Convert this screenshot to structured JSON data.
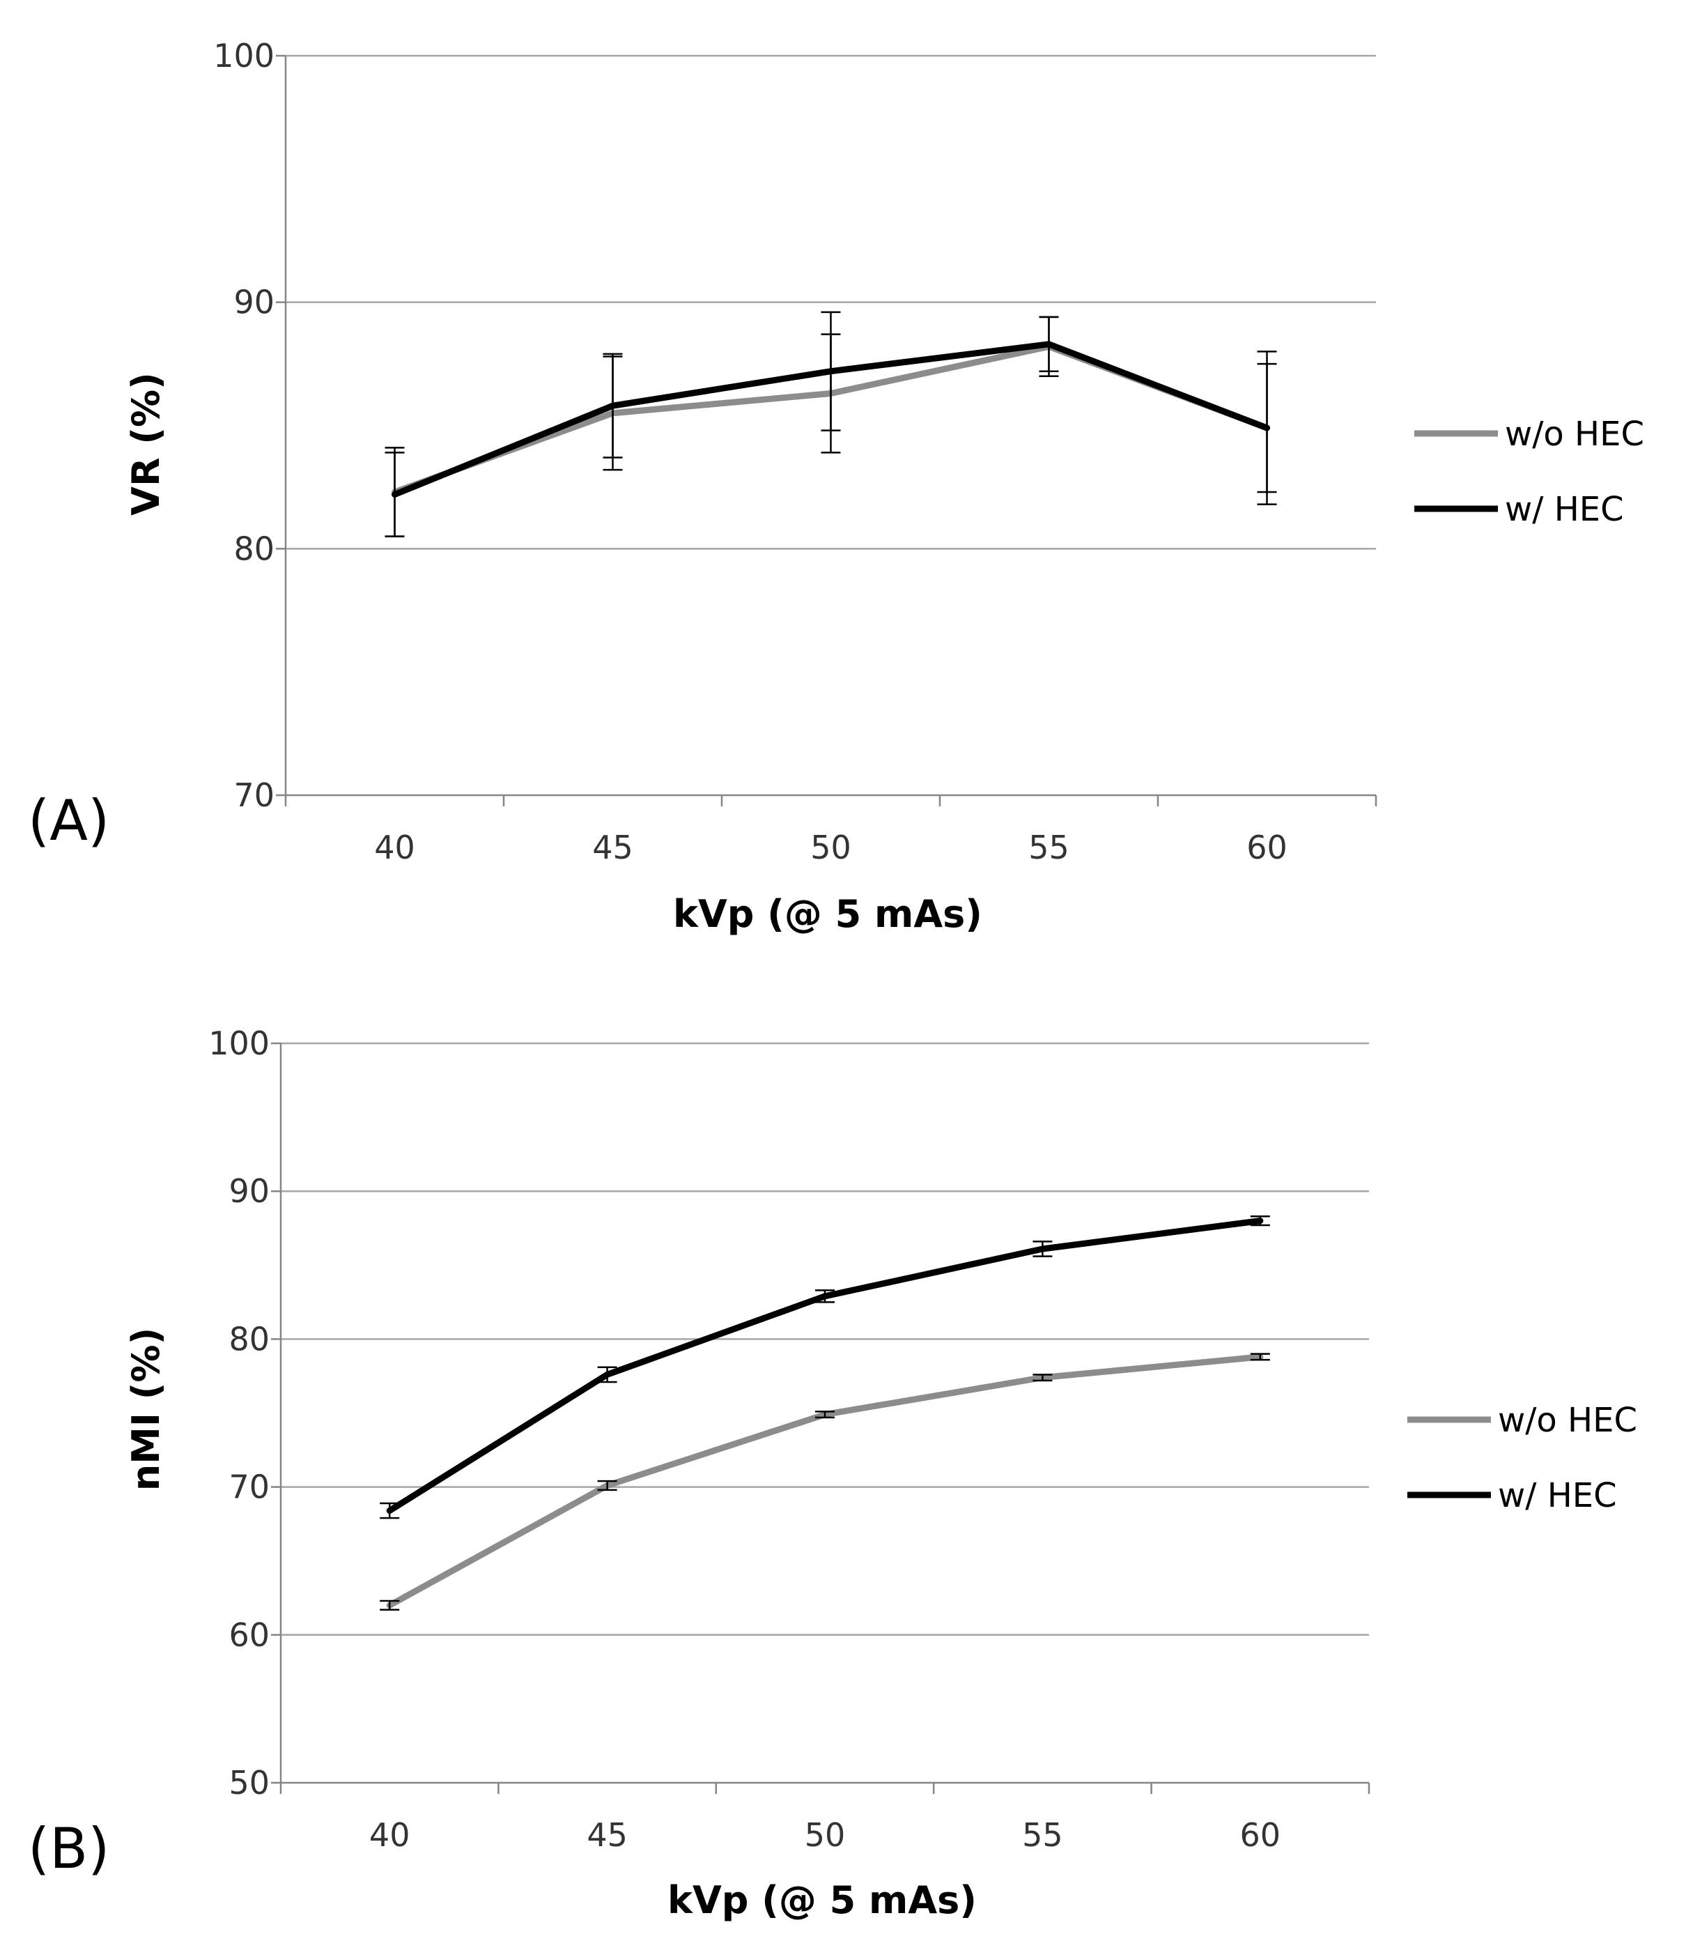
{
  "figure": {
    "panel_a_letter": "(A)",
    "panel_b_letter": "(B)"
  },
  "colors": {
    "without_hec": "#8c8c8c",
    "with_hec": "#000000",
    "grid": "#a6a6a6",
    "axis": "#868686",
    "error_bar": "#000000"
  },
  "chart_data": [
    {
      "type": "line",
      "panel": "(A)",
      "title": "",
      "xlabel": "kVp (@ 5 mAs)",
      "ylabel": "VR (%)",
      "categories": [
        "40",
        "45",
        "50",
        "55",
        "60"
      ],
      "ylim": [
        70,
        100
      ],
      "yticks": [
        "70",
        "80",
        "90",
        "100"
      ],
      "grid": true,
      "legend_position": "right",
      "series": [
        {
          "name": "w/o HEC",
          "color": "#8c8c8c",
          "values": [
            82.3,
            85.5,
            86.3,
            88.2,
            84.9
          ],
          "errors": [
            1.8,
            2.3,
            2.4,
            1.2,
            3.1
          ]
        },
        {
          "name": "w/ HEC",
          "color": "#000000",
          "values": [
            82.2,
            85.8,
            87.2,
            88.3,
            84.9
          ],
          "errors": [
            1.7,
            2.1,
            2.4,
            1.1,
            2.6
          ]
        }
      ]
    },
    {
      "type": "line",
      "panel": "(B)",
      "title": "",
      "xlabel": "kVp (@ 5 mAs)",
      "ylabel": "nMI (%)",
      "categories": [
        "40",
        "45",
        "50",
        "55",
        "60"
      ],
      "ylim": [
        50,
        100
      ],
      "yticks": [
        "50",
        "60",
        "70",
        "80",
        "90",
        "100"
      ],
      "grid": true,
      "legend_position": "right",
      "series": [
        {
          "name": "w/o HEC",
          "color": "#8c8c8c",
          "values": [
            62.0,
            70.1,
            74.9,
            77.4,
            78.8
          ],
          "errors": [
            0.3,
            0.3,
            0.2,
            0.2,
            0.2
          ]
        },
        {
          "name": "w/ HEC",
          "color": "#000000",
          "values": [
            68.4,
            77.6,
            82.9,
            86.1,
            88.0
          ],
          "errors": [
            0.5,
            0.5,
            0.4,
            0.5,
            0.3
          ]
        }
      ]
    }
  ]
}
